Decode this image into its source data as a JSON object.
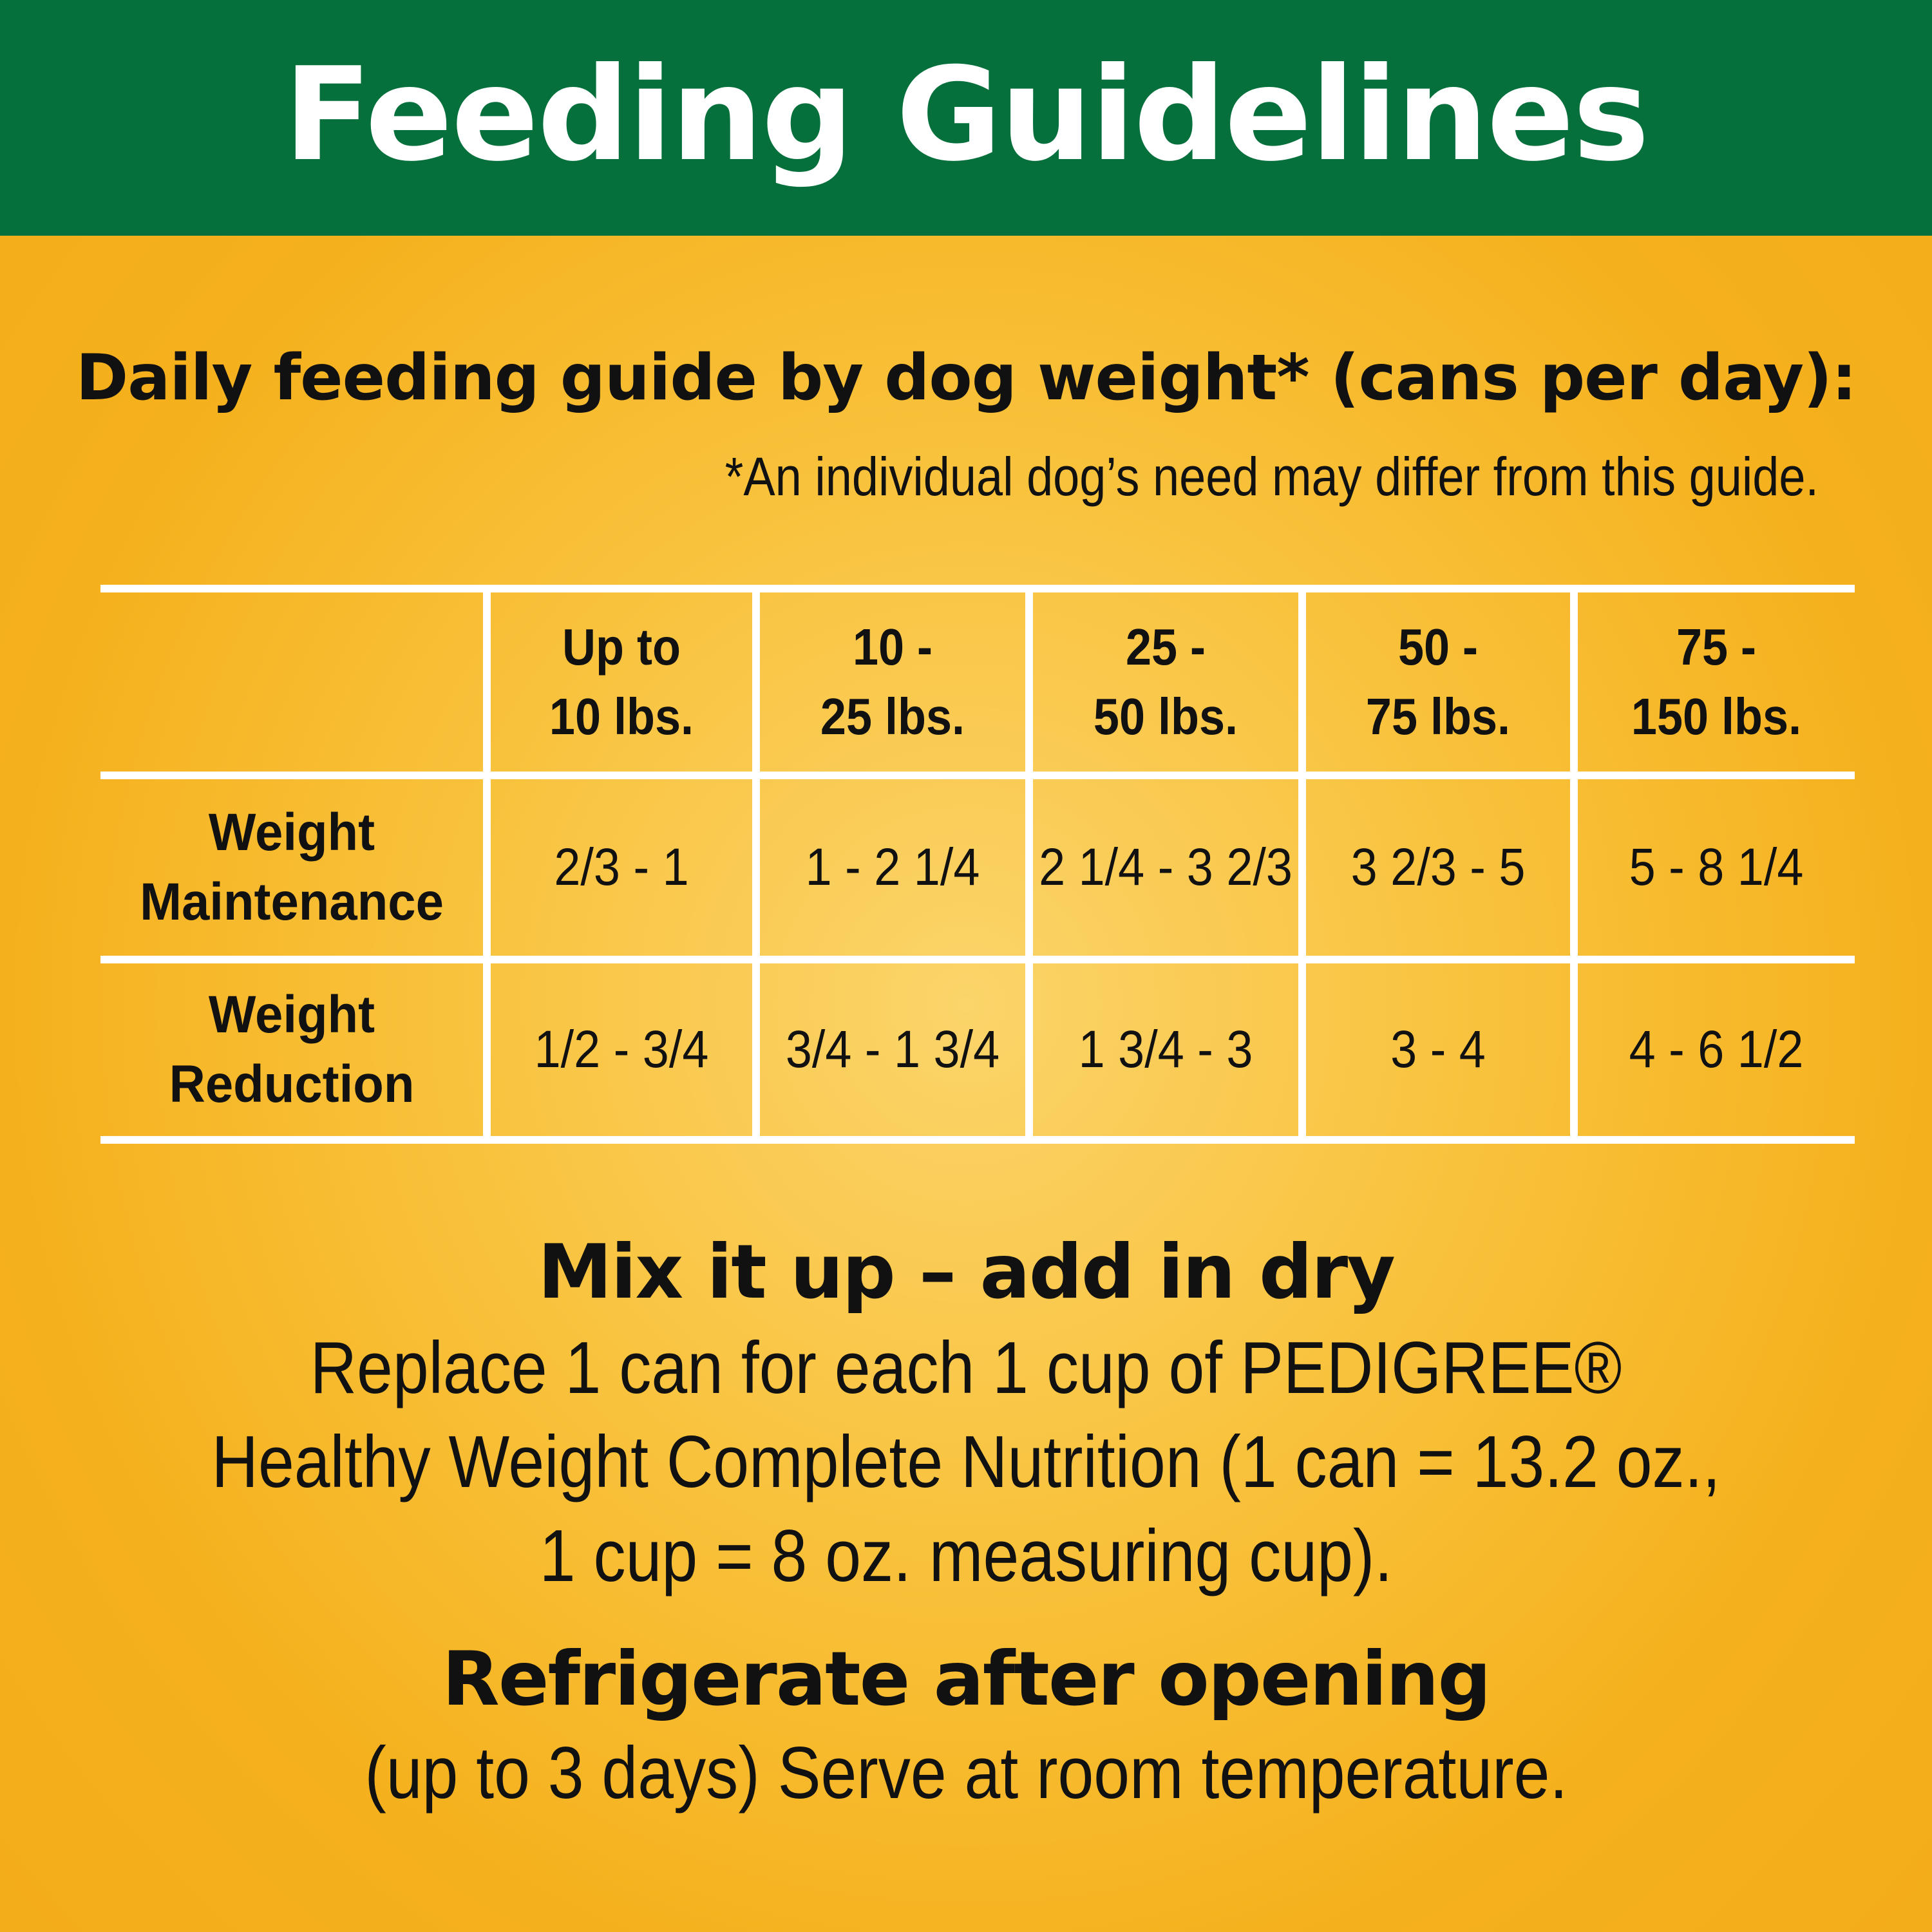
{
  "header": {
    "title": "Feeding Guidelines"
  },
  "guide": {
    "subtitle": "Daily feeding guide by dog weight* (cans per day):",
    "footnote": "*An individual dog’s need may differ from this guide."
  },
  "table": {
    "columns": [
      {
        "line1": "Up to",
        "line2": "10 lbs."
      },
      {
        "line1": "10 -",
        "line2": "25 lbs."
      },
      {
        "line1": "25 -",
        "line2": "50 lbs."
      },
      {
        "line1": "50 -",
        "line2": "75 lbs."
      },
      {
        "line1": "75 -",
        "line2": "150 lbs."
      }
    ],
    "rows": [
      {
        "line1": "Weight",
        "line2": "Maintenance",
        "values": [
          "2/3 - 1",
          "1 - 2 1/4",
          "2 1/4 - 3 2/3",
          "3 2/3 - 5",
          "5 - 8 1/4"
        ]
      },
      {
        "line1": "Weight",
        "line2": "Reduction",
        "values": [
          "1/2 - 3/4",
          "3/4 - 1 3/4",
          "1 3/4 - 3",
          "3 - 4",
          "4 - 6 1/2"
        ]
      }
    ]
  },
  "mix": {
    "title": "Mix it up – add in dry",
    "lines": [
      "Replace 1 can for each 1 cup of PEDIGREE®",
      "Healthy Weight Complete Nutrition (1 can = 13.2 oz.,",
      "1 cup = 8 oz. measuring cup)."
    ]
  },
  "storage": {
    "title": "Refrigerate after opening",
    "body": "(up to 3 days) Serve at room temperature."
  }
}
